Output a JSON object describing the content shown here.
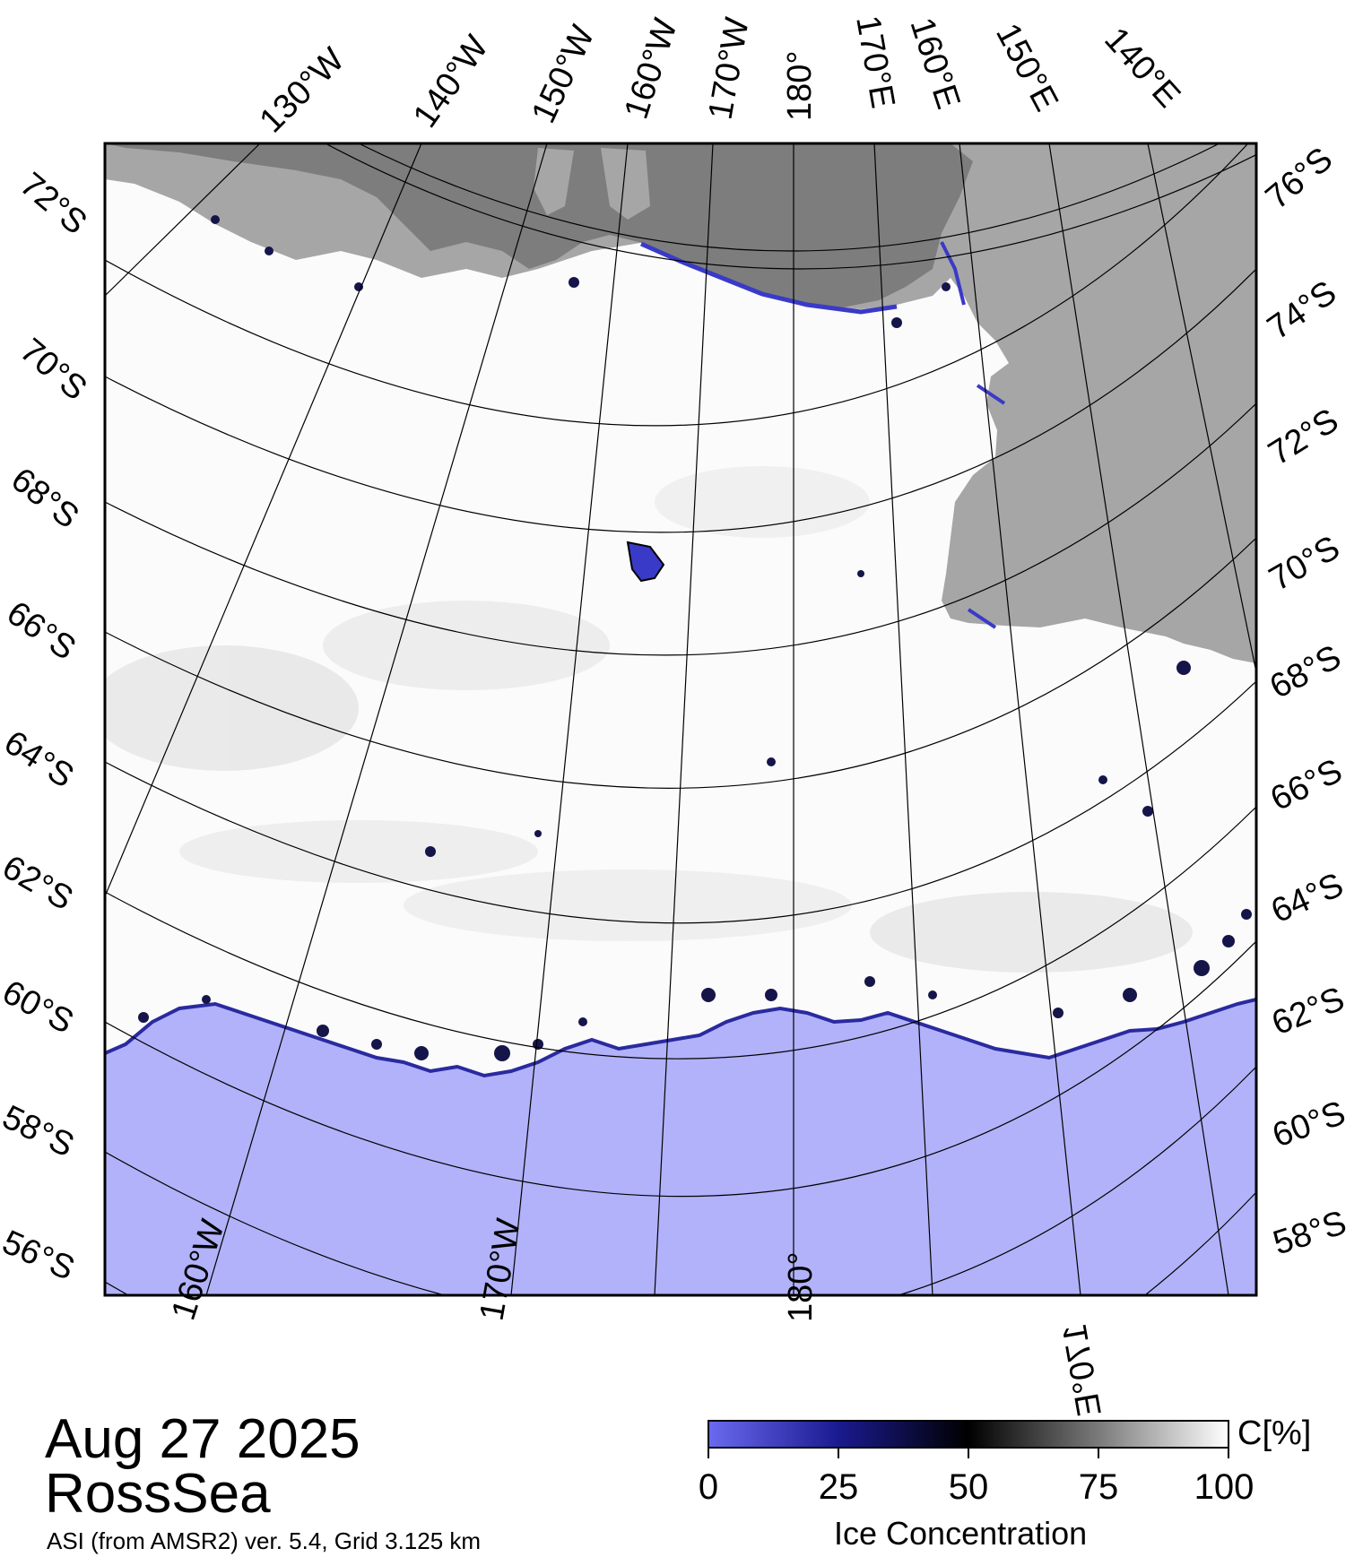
{
  "title": {
    "date": "Aug 27 2025",
    "region": "RossSea",
    "source": "ASI (from AMSR2) ver. 5.4,  Grid 3.125 km"
  },
  "legend": {
    "title": "Ice Concentration",
    "unit": "C[%]",
    "ticks": [
      "0",
      "25",
      "50",
      "75",
      "100"
    ],
    "range": [
      0,
      100
    ],
    "colors": {
      "low": "#6060ee",
      "mid": "#000000",
      "high": "#ffffff"
    }
  },
  "map": {
    "top_lon_labels": [
      "130°W",
      "140°W",
      "150°W",
      "160°W",
      "170°W",
      "180°",
      "170°E",
      "160°E",
      "150°E",
      "140°E"
    ],
    "bottom_lon_labels": [
      "160°W",
      "170°W",
      "180°",
      "170°E"
    ],
    "left_lat_labels": [
      "72°S",
      "70°S",
      "68°S",
      "66°S",
      "64°S",
      "62°S",
      "60°S",
      "58°S",
      "56°S"
    ],
    "right_lat_labels": [
      "76°S",
      "74°S",
      "72°S",
      "70°S",
      "68°S",
      "66°S",
      "64°S",
      "62°S",
      "60°S",
      "58°S"
    ],
    "colors": {
      "open_water": "#b2b2fa",
      "land": "#a6a6a6",
      "ice_shelf": "#7d7d7d",
      "ice": "#ffffff",
      "ice_edge": "#3a3ac8"
    }
  }
}
